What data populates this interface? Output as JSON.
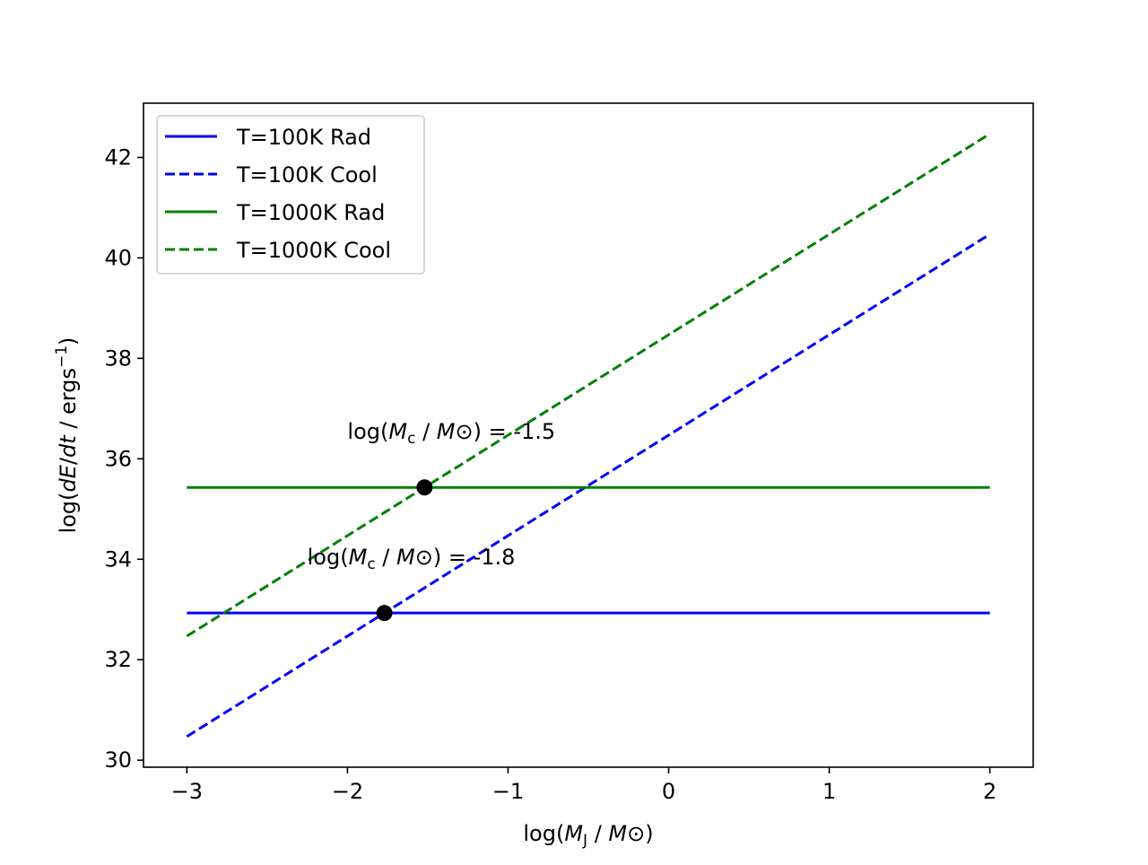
{
  "chart_data": {
    "type": "line",
    "title": "",
    "xlabel": "log(M_J / M_⊙)",
    "ylabel": "log(dE/dt / ergs^-1)",
    "xlim": [
      -3.27,
      2.27
    ],
    "ylim": [
      29.86,
      43.08
    ],
    "xticks": [
      -3,
      -2,
      -1,
      0,
      1,
      2
    ],
    "xtick_labels": [
      "−3",
      "−2",
      "−1",
      "0",
      "1",
      "2"
    ],
    "yticks": [
      30,
      32,
      34,
      36,
      38,
      40,
      42
    ],
    "ytick_labels": [
      "30",
      "32",
      "34",
      "36",
      "38",
      "40",
      "42"
    ],
    "grid": false,
    "legend_position": "top-left",
    "series": [
      {
        "name": "T=100K Rad",
        "color": "#0000ff",
        "style": "solid",
        "x": [
          -3,
          2
        ],
        "y": [
          32.93,
          32.93
        ]
      },
      {
        "name": "T=100K Cool",
        "color": "#0000ff",
        "style": "dashed",
        "x": [
          -3,
          2
        ],
        "y": [
          30.47,
          40.47
        ]
      },
      {
        "name": "T=1000K Rad",
        "color": "#008000",
        "style": "solid",
        "x": [
          -3,
          2
        ],
        "y": [
          35.43,
          35.43
        ]
      },
      {
        "name": "T=1000K Cool",
        "color": "#008000",
        "style": "dashed",
        "x": [
          -3,
          2
        ],
        "y": [
          32.47,
          42.47
        ]
      }
    ],
    "points": [
      {
        "x": -1.52,
        "y": 35.43,
        "color": "#000000"
      },
      {
        "x": -1.77,
        "y": 32.93,
        "color": "#000000"
      }
    ],
    "annotations": [
      {
        "label": "log(M_c / M_⊙) =  -1.5",
        "value": "-1.5",
        "x": -2.0,
        "y": 36.4
      },
      {
        "label": "log(M_c / M_⊙) =  -1.8",
        "value": "-1.8",
        "x": -2.25,
        "y": 33.9
      }
    ]
  }
}
